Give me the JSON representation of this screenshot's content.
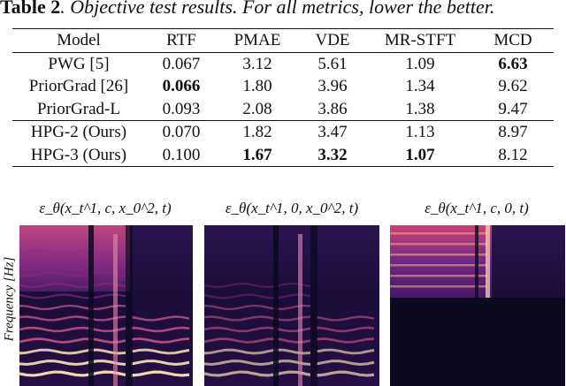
{
  "caption": {
    "label": "Table 2",
    "text": ". Objective test results. For all metrics, lower the better."
  },
  "table": {
    "headers": [
      "Model",
      "RTF",
      "PMAE",
      "VDE",
      "MR-STFT",
      "MCD"
    ],
    "rows": [
      {
        "cells": [
          "PWG [5]",
          "0.067",
          "3.12",
          "5.61",
          "1.09",
          "6.63"
        ],
        "bold": [
          5
        ]
      },
      {
        "cells": [
          "PriorGrad [26]",
          "0.066",
          "1.80",
          "3.96",
          "1.34",
          "9.62"
        ],
        "bold": [
          1
        ]
      },
      {
        "cells": [
          "PriorGrad-L",
          "0.093",
          "2.08",
          "3.86",
          "1.38",
          "9.47"
        ],
        "bold": []
      },
      {
        "cells": [
          "HPG-2 (Ours)",
          "0.070",
          "1.82",
          "3.47",
          "1.13",
          "8.97"
        ],
        "bold": []
      },
      {
        "cells": [
          "HPG-3 (Ours)",
          "0.100",
          "1.67",
          "3.32",
          "1.07",
          "8.12"
        ],
        "bold": [
          2,
          3,
          4
        ]
      }
    ]
  },
  "figure": {
    "y_axis_label": "Frequency [Hz]",
    "titles": [
      "ε_θ(x_t^1, c, x_0^2, t)",
      "ε_θ(x_t^1, 0, x_0^2, t)",
      "ε_θ(x_t^1, c, 0, t)"
    ]
  },
  "colors": {
    "spectrogram_dark": "#0b0a1e",
    "spectrogram_mid": "#8a2a8c",
    "spectrogram_bright": "#fbe3b4"
  }
}
